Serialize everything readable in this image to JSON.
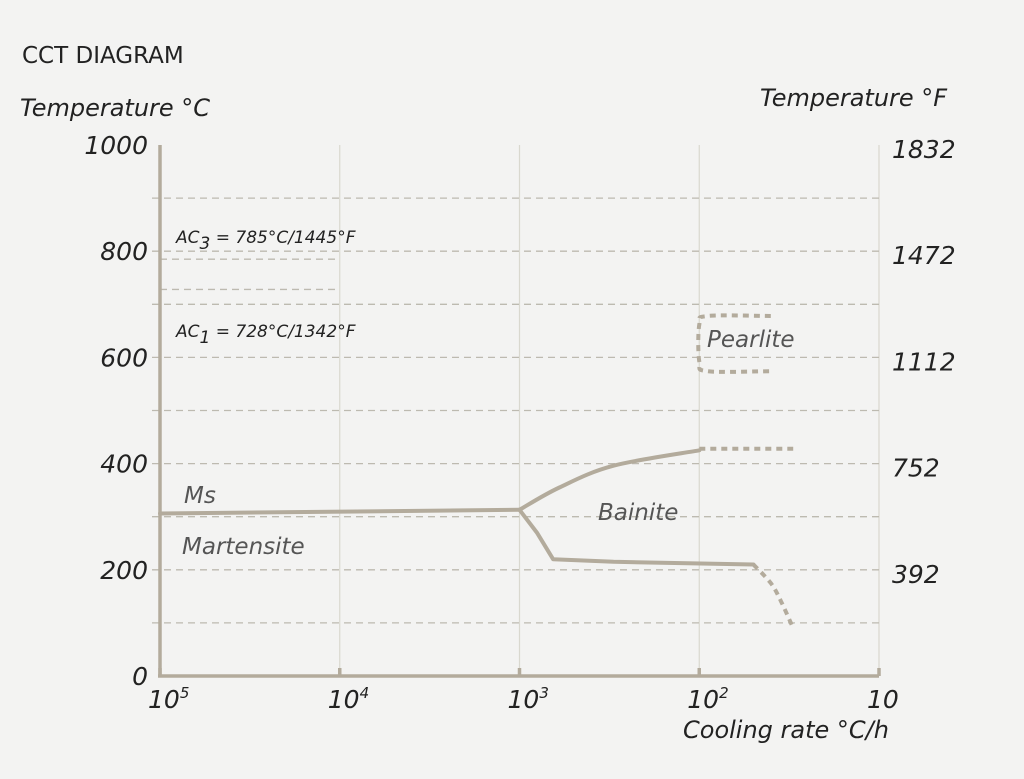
{
  "chart_data": {
    "type": "line",
    "title": "CCT DIAGRAM",
    "ylabel_left": "Temperature °C",
    "ylabel_right": "Temperature °F",
    "xlabel": "Cooling rate °C/h",
    "ylim": [
      0,
      1000
    ],
    "x_scale": "log (reversed)",
    "xlim": [
      100000,
      10
    ],
    "y_ticks_c": [
      "1000",
      "800",
      "600",
      "400",
      "200",
      "0"
    ],
    "y_ticks_c_values": [
      1000,
      800,
      600,
      400,
      200,
      0
    ],
    "y_ticks_f": [
      "1832",
      "1472",
      "1112",
      "752",
      "392"
    ],
    "y_ticks_f_values": [
      1000,
      800,
      600,
      400,
      200
    ],
    "x_ticks": [
      {
        "value": 100000,
        "base": "10",
        "exp": "5"
      },
      {
        "value": 10000,
        "base": "10",
        "exp": "4"
      },
      {
        "value": 1000,
        "base": "10",
        "exp": "3"
      },
      {
        "value": 100,
        "base": "10",
        "exp": "2"
      },
      {
        "value": 10,
        "base": "10",
        "exp": ""
      }
    ],
    "grid_dashed_c": [
      900,
      800,
      700,
      600,
      500,
      400,
      300,
      200,
      100
    ],
    "annotations": {
      "ac3": {
        "pre": "AC",
        "sub": "3",
        "post": " = 785°C/1445°F",
        "value": 785
      },
      "ac1": {
        "pre": "AC",
        "sub": "1",
        "post": " = 728°C/1342°F",
        "value": 728
      }
    },
    "regions": {
      "ms": "Ms",
      "martensite": "Martensite",
      "bainite": "Bainite",
      "pearlite": "Pearlite"
    },
    "series": [
      {
        "name": "Ms",
        "style": "solid",
        "points": [
          [
            100000,
            306
          ],
          [
            1000,
            313
          ]
        ]
      },
      {
        "name": "Bainite start",
        "style": "solid",
        "points": [
          [
            1000,
            313
          ],
          [
            600,
            355
          ],
          [
            300,
            396
          ],
          [
            100,
            425
          ]
        ]
      },
      {
        "name": "Bainite start (extension)",
        "style": "dashed",
        "points": [
          [
            100,
            428
          ],
          [
            30,
            428
          ]
        ]
      },
      {
        "name": "Bainite finish",
        "style": "solid",
        "points": [
          [
            1000,
            313
          ],
          [
            800,
            270
          ],
          [
            650,
            220
          ],
          [
            300,
            215
          ],
          [
            50,
            210
          ]
        ]
      },
      {
        "name": "Bainite finish (extension)",
        "style": "dashed",
        "points": [
          [
            50,
            210
          ],
          [
            40,
            175
          ],
          [
            35,
            140
          ],
          [
            30,
            90
          ]
        ]
      },
      {
        "name": "Pearlite",
        "style": "dashed",
        "points": [
          [
            40,
            678
          ],
          [
            90,
            678
          ],
          [
            100,
            662
          ],
          [
            100,
            592
          ],
          [
            90,
            574
          ],
          [
            40,
            574
          ]
        ]
      }
    ]
  }
}
